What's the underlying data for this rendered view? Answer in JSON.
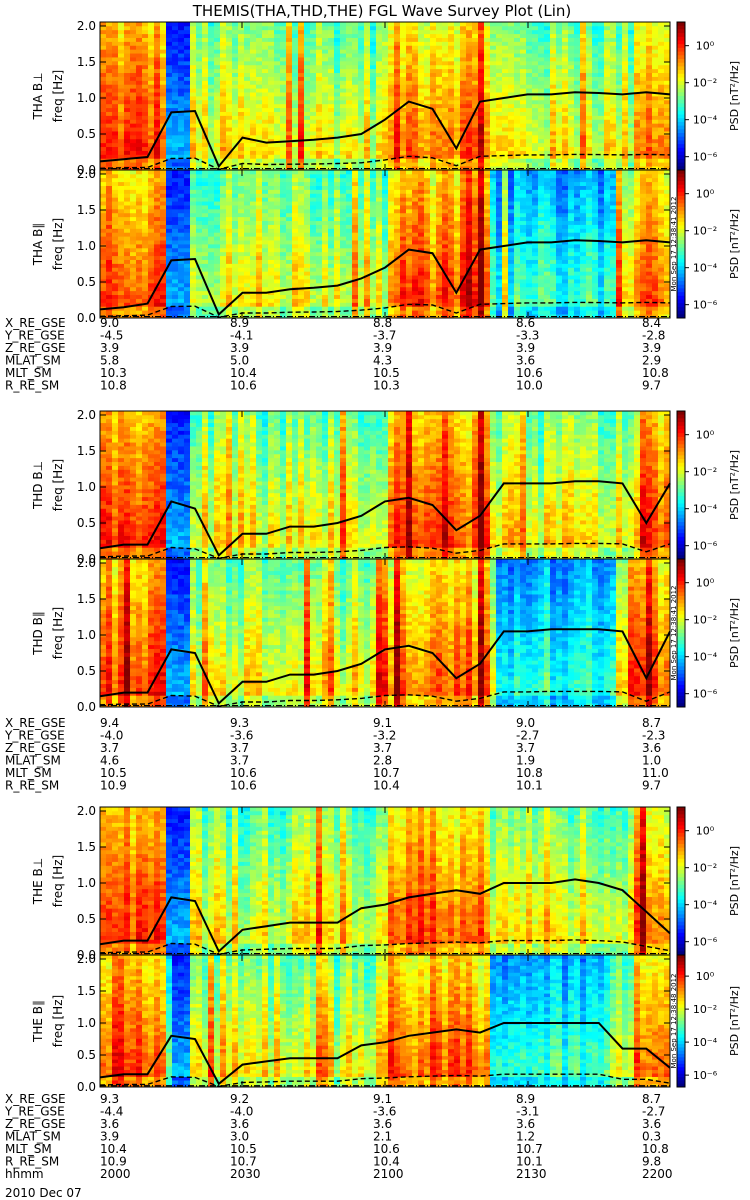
{
  "title": "THEMIS(THA,THD,THE) FGL Wave Survey Plot (Lin)",
  "date_label": "2010 Dec 07",
  "colorbar": {
    "label": "PSD [nT²/Hz]",
    "ticks": [
      "10⁰",
      "10⁻²",
      "10⁻⁴",
      "10⁻⁶"
    ]
  },
  "freq_axis": {
    "label": "freq [Hz]",
    "ticks": [
      "0.0",
      "0.5",
      "1.0",
      "1.5",
      "2.0"
    ]
  },
  "stamps": [
    "Mon Sep 17 12:38:41 2012",
    "Mon Sep 17 12:38:41 2012",
    "Mon Sep 17 12:38:48 2012"
  ],
  "probes": [
    {
      "panels": [
        "THA B⊥",
        "THA B∥"
      ],
      "ephemeris": [
        {
          "label": "X_RE_GSE",
          "values": [
            "9.0",
            "8.9",
            "8.8",
            "8.6",
            "8.4"
          ]
        },
        {
          "label": "Y_RE_GSE",
          "values": [
            "-4.5",
            "-4.1",
            "-3.7",
            "-3.3",
            "-2.8"
          ]
        },
        {
          "label": "Z_RE_GSE",
          "values": [
            "3.9",
            "3.9",
            "3.9",
            "3.9",
            "3.9"
          ]
        },
        {
          "label": "MLAT_SM",
          "values": [
            "5.8",
            "5.0",
            "4.3",
            "3.6",
            "2.9"
          ]
        },
        {
          "label": "MLT_SM",
          "values": [
            "10.3",
            "10.4",
            "10.5",
            "10.6",
            "10.8"
          ]
        },
        {
          "label": "R_RE_SM",
          "values": [
            "10.8",
            "10.6",
            "10.3",
            "10.0",
            "9.7"
          ]
        }
      ]
    },
    {
      "panels": [
        "THD B⊥",
        "THD B∥"
      ],
      "ephemeris": [
        {
          "label": "X_RE_GSE",
          "values": [
            "9.4",
            "9.3",
            "9.1",
            "9.0",
            "8.7"
          ]
        },
        {
          "label": "Y_RE_GSE",
          "values": [
            "-4.0",
            "-3.6",
            "-3.2",
            "-2.7",
            "-2.3"
          ]
        },
        {
          "label": "Z_RE_GSE",
          "values": [
            "3.7",
            "3.7",
            "3.7",
            "3.7",
            "3.6"
          ]
        },
        {
          "label": "MLAT_SM",
          "values": [
            "4.6",
            "3.7",
            "2.8",
            "1.9",
            "1.0"
          ]
        },
        {
          "label": "MLT_SM",
          "values": [
            "10.5",
            "10.6",
            "10.7",
            "10.8",
            "11.0"
          ]
        },
        {
          "label": "R_RE_SM",
          "values": [
            "10.9",
            "10.6",
            "10.4",
            "10.1",
            "9.7"
          ]
        }
      ]
    },
    {
      "panels": [
        "THE B⊥",
        "THE B∥"
      ],
      "ephemeris": [
        {
          "label": "X_RE_GSE",
          "values": [
            "9.3",
            "9.2",
            "9.1",
            "8.9",
            "8.7"
          ]
        },
        {
          "label": "Y_RE_GSE",
          "values": [
            "-4.4",
            "-4.0",
            "-3.6",
            "-3.1",
            "-2.7"
          ]
        },
        {
          "label": "Z_RE_GSE",
          "values": [
            "3.6",
            "3.6",
            "3.6",
            "3.6",
            "3.6"
          ]
        },
        {
          "label": "MLAT_SM",
          "values": [
            "3.9",
            "3.0",
            "2.1",
            "1.2",
            "0.3"
          ]
        },
        {
          "label": "MLT_SM",
          "values": [
            "10.4",
            "10.5",
            "10.6",
            "10.7",
            "10.8"
          ]
        },
        {
          "label": "R_RE_SM",
          "values": [
            "10.9",
            "10.7",
            "10.4",
            "10.1",
            "9.8"
          ]
        },
        {
          "label": "hhmm",
          "values": [
            "2000",
            "2030",
            "2100",
            "2130",
            "2200"
          ]
        }
      ]
    }
  ],
  "chart_data": {
    "type": "heatmap",
    "title": "THEMIS(THA,THD,THE) FGL Wave Survey Plot (Lin)",
    "xlabel": "hhmm",
    "x_ticks": [
      "2000",
      "2030",
      "2100",
      "2130",
      "2200"
    ],
    "ylabel": "freq [Hz]",
    "ylim": [
      0,
      2.0
    ],
    "y_ticks": [
      0.0,
      0.5,
      1.0,
      1.5,
      2.0
    ],
    "colorbar_label": "PSD [nT²/Hz]",
    "color_scale": "log",
    "color_range": [
      "1e-7",
      "1e1"
    ],
    "lines": [
      "solid: local gyrofrequency",
      "dashed",
      "dash-dot"
    ],
    "series": [
      {
        "name": "THA B⊥",
        "x": [
          2000,
          2005,
          2010,
          2015,
          2020,
          2025,
          2030,
          2035,
          2040,
          2045,
          2050,
          2055,
          2100,
          2105,
          2110,
          2115,
          2120,
          2125,
          2130,
          2135,
          2140,
          2145,
          2150,
          2155,
          2200
        ],
        "gyro_freq": [
          0.12,
          0.15,
          0.18,
          0.8,
          0.82,
          0.05,
          0.45,
          0.38,
          0.4,
          0.42,
          0.45,
          0.5,
          0.7,
          0.95,
          0.85,
          0.3,
          0.95,
          1.0,
          1.05,
          1.05,
          1.08,
          1.07,
          1.05,
          1.08,
          1.05
        ]
      },
      {
        "name": "THA B∥",
        "x": [
          2000,
          2005,
          2010,
          2015,
          2020,
          2025,
          2030,
          2035,
          2040,
          2045,
          2050,
          2055,
          2100,
          2105,
          2110,
          2115,
          2120,
          2125,
          2130,
          2135,
          2140,
          2145,
          2150,
          2155,
          2200
        ],
        "gyro_freq": [
          0.12,
          0.15,
          0.2,
          0.8,
          0.82,
          0.05,
          0.35,
          0.35,
          0.4,
          0.42,
          0.45,
          0.55,
          0.7,
          0.95,
          0.9,
          0.35,
          0.95,
          1.0,
          1.05,
          1.05,
          1.08,
          1.07,
          1.05,
          1.08,
          1.05
        ]
      },
      {
        "name": "THD B⊥",
        "x": [
          2000,
          2005,
          2010,
          2015,
          2020,
          2025,
          2030,
          2035,
          2040,
          2045,
          2050,
          2055,
          2100,
          2105,
          2110,
          2115,
          2120,
          2125,
          2130,
          2135,
          2140,
          2145,
          2150,
          2155,
          2200
        ],
        "gyro_freq": [
          0.15,
          0.2,
          0.2,
          0.8,
          0.7,
          0.05,
          0.35,
          0.35,
          0.45,
          0.45,
          0.5,
          0.6,
          0.8,
          0.85,
          0.75,
          0.4,
          0.6,
          1.05,
          1.05,
          1.05,
          1.08,
          1.08,
          1.05,
          0.5,
          1.05
        ]
      },
      {
        "name": "THD B∥",
        "x": [
          2000,
          2005,
          2010,
          2015,
          2020,
          2025,
          2030,
          2035,
          2040,
          2045,
          2050,
          2055,
          2100,
          2105,
          2110,
          2115,
          2120,
          2125,
          2130,
          2135,
          2140,
          2145,
          2150,
          2155,
          2200
        ],
        "gyro_freq": [
          0.15,
          0.2,
          0.2,
          0.8,
          0.75,
          0.05,
          0.35,
          0.35,
          0.45,
          0.45,
          0.5,
          0.6,
          0.8,
          0.85,
          0.75,
          0.4,
          0.6,
          1.05,
          1.05,
          1.08,
          1.08,
          1.08,
          1.05,
          0.4,
          1.05
        ]
      },
      {
        "name": "THE B⊥",
        "x": [
          2000,
          2005,
          2010,
          2015,
          2020,
          2025,
          2030,
          2035,
          2040,
          2045,
          2050,
          2055,
          2100,
          2105,
          2110,
          2115,
          2120,
          2125,
          2130,
          2135,
          2140,
          2145,
          2150,
          2155,
          2200
        ],
        "gyro_freq": [
          0.15,
          0.2,
          0.2,
          0.8,
          0.75,
          0.05,
          0.35,
          0.4,
          0.45,
          0.45,
          0.45,
          0.65,
          0.7,
          0.8,
          0.85,
          0.9,
          0.85,
          1.0,
          1.0,
          1.0,
          1.05,
          1.0,
          0.9,
          0.6,
          0.3
        ]
      },
      {
        "name": "THE B∥",
        "x": [
          2000,
          2005,
          2010,
          2015,
          2020,
          2025,
          2030,
          2035,
          2040,
          2045,
          2050,
          2055,
          2100,
          2105,
          2110,
          2115,
          2120,
          2125,
          2130,
          2135,
          2140,
          2145,
          2150,
          2155,
          2200
        ],
        "gyro_freq": [
          0.15,
          0.2,
          0.2,
          0.8,
          0.75,
          0.05,
          0.35,
          0.4,
          0.45,
          0.45,
          0.45,
          0.65,
          0.7,
          0.8,
          0.85,
          0.9,
          0.85,
          1.0,
          1.0,
          1.0,
          1.0,
          1.0,
          0.6,
          0.6,
          0.3
        ]
      }
    ]
  }
}
